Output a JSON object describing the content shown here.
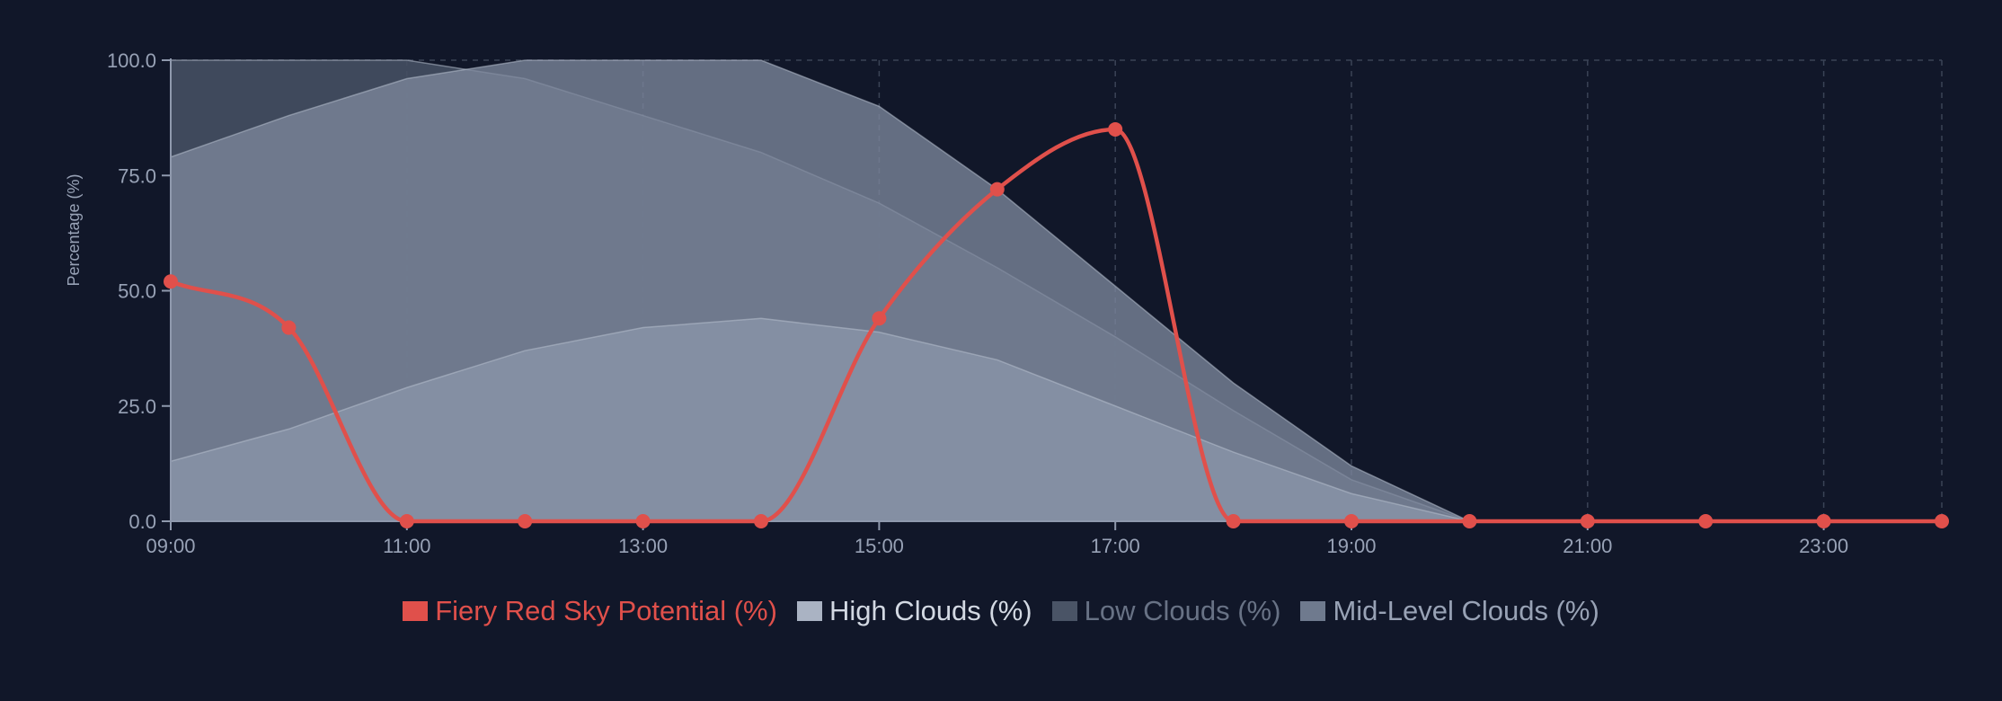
{
  "colors": {
    "background": "#111729",
    "grid": "#3a4356",
    "axis": "#8f99ad",
    "tick_text": "#98a2b6",
    "red": "#e0504b"
  },
  "chart_data": {
    "type": "area",
    "ylabel": "Percentage (%)",
    "xlabel": "",
    "ylim": [
      0,
      100
    ],
    "y_ticks": [
      "0.0",
      "25.0",
      "50.0",
      "75.0",
      "100.0"
    ],
    "x": [
      "09:00",
      "10:00",
      "11:00",
      "12:00",
      "13:00",
      "14:00",
      "15:00",
      "16:00",
      "17:00",
      "18:00",
      "19:00",
      "20:00",
      "21:00",
      "22:00",
      "23:00",
      "24:00"
    ],
    "x_tick_labels": [
      "09:00",
      "11:00",
      "13:00",
      "15:00",
      "17:00",
      "19:00",
      "21:00",
      "23:00"
    ],
    "grid": "dashed vertical and top gridlines",
    "legend_position": "bottom-center",
    "series": [
      {
        "name": "Fiery Red Sky Potential (%)",
        "kind": "line",
        "color": "#e0504b",
        "legend_color": "#e0504b",
        "values": [
          52,
          42,
          0,
          0,
          0,
          0,
          44,
          72,
          85,
          0,
          0,
          0,
          0,
          0,
          0,
          0
        ]
      },
      {
        "name": "High Clouds (%)",
        "kind": "area",
        "color": "#8c97ac",
        "legend_color": "#aab3c3",
        "values": [
          13,
          20,
          29,
          37,
          42,
          44,
          41,
          35,
          25,
          15,
          6,
          0,
          0,
          0,
          0,
          0
        ]
      },
      {
        "name": "Low Clouds (%)",
        "kind": "area",
        "color": "#454f62",
        "legend_color": "#4a5466",
        "values": [
          100,
          100,
          100,
          96,
          88,
          80,
          69,
          55,
          40,
          24,
          9,
          0,
          0,
          0,
          0,
          0
        ]
      },
      {
        "name": "Mid-Level Clouds (%)",
        "kind": "area",
        "color": "#7c879b",
        "legend_color": "#6f7a8e",
        "values": [
          79,
          88,
          96,
          100,
          100,
          100,
          90,
          72,
          51,
          30,
          12,
          0,
          0,
          0,
          0,
          0
        ]
      }
    ]
  }
}
